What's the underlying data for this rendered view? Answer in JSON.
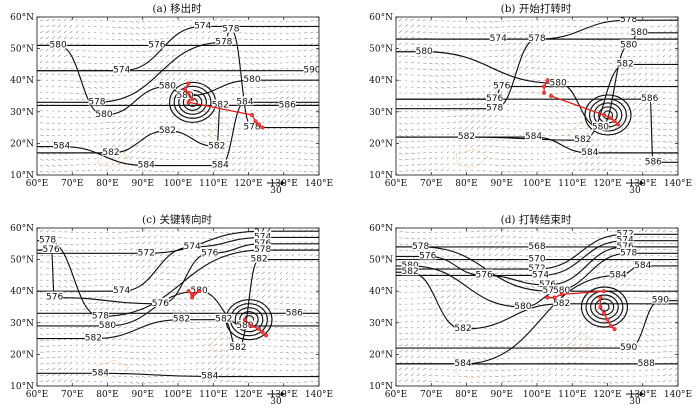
{
  "chart_data": [
    {
      "type": "contour",
      "title": "(a) 移出时",
      "x_ticks": [
        "60°E",
        "70°E",
        "80°E",
        "90°E",
        "100°E",
        "110°E",
        "120°E",
        "130°E",
        "140°E"
      ],
      "y_ticks": [
        "10°N",
        "20°N",
        "30°N",
        "40°N",
        "50°N",
        "60°N"
      ],
      "xlim": [
        60,
        140
      ],
      "ylim": [
        10,
        60
      ],
      "reference_vector": "30",
      "contour_labels": [
        {
          "text": "574",
          "lon": 107,
          "lat": 57
        },
        {
          "text": "578",
          "lon": 115,
          "lat": 56
        },
        {
          "text": "580",
          "lon": 66,
          "lat": 51
        },
        {
          "text": "576",
          "lon": 94,
          "lat": 51
        },
        {
          "text": "578",
          "lon": 113,
          "lat": 52
        },
        {
          "text": "574",
          "lon": 84,
          "lat": 43
        },
        {
          "text": "580",
          "lon": 97,
          "lat": 38
        },
        {
          "text": "580",
          "lon": 102,
          "lat": 35
        },
        {
          "text": "580",
          "lon": 121,
          "lat": 40
        },
        {
          "text": "578",
          "lon": 77,
          "lat": 33
        },
        {
          "text": "580",
          "lon": 79,
          "lat": 29
        },
        {
          "text": "582",
          "lon": 112,
          "lat": 32
        },
        {
          "text": "584",
          "lon": 119,
          "lat": 33
        },
        {
          "text": "586",
          "lon": 131,
          "lat": 32
        },
        {
          "text": "582",
          "lon": 97,
          "lat": 24
        },
        {
          "text": "578",
          "lon": 121,
          "lat": 25
        },
        {
          "text": "584",
          "lon": 67,
          "lat": 19
        },
        {
          "text": "582",
          "lon": 81,
          "lat": 17
        },
        {
          "text": "584",
          "lon": 91,
          "lat": 13
        },
        {
          "text": "582",
          "lon": 111,
          "lat": 19
        },
        {
          "text": "584",
          "lon": 112,
          "lat": 13
        },
        {
          "text": "590",
          "lon": 138,
          "lat": 43
        }
      ],
      "track": [
        [
          103,
          39
        ],
        [
          102,
          37
        ],
        [
          103,
          36
        ],
        [
          104,
          34
        ],
        [
          103,
          33
        ],
        [
          121,
          29
        ],
        [
          122,
          27
        ],
        [
          123,
          26
        ],
        [
          124,
          25
        ]
      ]
    },
    {
      "type": "contour",
      "title": "(b) 开始打转时",
      "x_ticks": [
        "60°E",
        "70°E",
        "80°E",
        "90°E",
        "100°E",
        "110°E",
        "120°E",
        "130°E",
        "140°E"
      ],
      "y_ticks": [
        "10°N",
        "20°N",
        "30°N",
        "40°N",
        "50°N",
        "60°N"
      ],
      "xlim": [
        60,
        140
      ],
      "ylim": [
        10,
        60
      ],
      "reference_vector": "30",
      "contour_labels": [
        {
          "text": "578",
          "lon": 126,
          "lat": 59
        },
        {
          "text": "580",
          "lon": 129,
          "lat": 55
        },
        {
          "text": "574",
          "lon": 89,
          "lat": 53
        },
        {
          "text": "578",
          "lon": 100,
          "lat": 53
        },
        {
          "text": "580",
          "lon": 126,
          "lat": 51
        },
        {
          "text": "580",
          "lon": 68,
          "lat": 49
        },
        {
          "text": "582",
          "lon": 125,
          "lat": 45
        },
        {
          "text": "576",
          "lon": 90,
          "lat": 38
        },
        {
          "text": "580",
          "lon": 106,
          "lat": 39
        },
        {
          "text": "576",
          "lon": 88,
          "lat": 34
        },
        {
          "text": "578",
          "lon": 88,
          "lat": 31
        },
        {
          "text": "586",
          "lon": 132,
          "lat": 34
        },
        {
          "text": "580",
          "lon": 118,
          "lat": 25
        },
        {
          "text": "582",
          "lon": 80,
          "lat": 22
        },
        {
          "text": "584",
          "lon": 99,
          "lat": 22
        },
        {
          "text": "582",
          "lon": 113,
          "lat": 21
        },
        {
          "text": "584",
          "lon": 115,
          "lat": 17
        },
        {
          "text": "586",
          "lon": 133,
          "lat": 14
        }
      ],
      "track": [
        [
          103,
          40
        ],
        [
          102,
          38
        ],
        [
          102,
          36
        ],
        [
          104,
          35
        ],
        [
          119,
          29
        ],
        [
          121,
          28
        ],
        [
          122,
          27
        ],
        [
          123,
          26
        ]
      ]
    },
    {
      "type": "contour",
      "title": "(c) 关键转向时",
      "x_ticks": [
        "60°E",
        "70°E",
        "80°E",
        "90°E",
        "100°E",
        "110°E",
        "120°E",
        "130°E",
        "140°E"
      ],
      "y_ticks": [
        "10°N",
        "20°N",
        "30°N",
        "40°N",
        "50°N",
        "60°N"
      ],
      "xlim": [
        60,
        140
      ],
      "ylim": [
        10,
        60
      ],
      "reference_vector": "30",
      "contour_labels": [
        {
          "text": "572",
          "lon": 124,
          "lat": 59
        },
        {
          "text": "574",
          "lon": 124,
          "lat": 57
        },
        {
          "text": "576",
          "lon": 124,
          "lat": 55
        },
        {
          "text": "578",
          "lon": 124,
          "lat": 53
        },
        {
          "text": "578",
          "lon": 63,
          "lat": 56
        },
        {
          "text": "576",
          "lon": 64,
          "lat": 53
        },
        {
          "text": "572",
          "lon": 91,
          "lat": 52
        },
        {
          "text": "574",
          "lon": 104,
          "lat": 54
        },
        {
          "text": "576",
          "lon": 109,
          "lat": 52
        },
        {
          "text": "582",
          "lon": 123,
          "lat": 50
        },
        {
          "text": "576",
          "lon": 65,
          "lat": 38
        },
        {
          "text": "574",
          "lon": 84,
          "lat": 40
        },
        {
          "text": "576",
          "lon": 95,
          "lat": 36
        },
        {
          "text": "580",
          "lon": 106,
          "lat": 40
        },
        {
          "text": "578",
          "lon": 78,
          "lat": 32
        },
        {
          "text": "580",
          "lon": 80,
          "lat": 29
        },
        {
          "text": "582",
          "lon": 101,
          "lat": 31
        },
        {
          "text": "582",
          "lon": 113,
          "lat": 31
        },
        {
          "text": "586",
          "lon": 133,
          "lat": 33
        },
        {
          "text": "582",
          "lon": 76,
          "lat": 25
        },
        {
          "text": "580",
          "lon": 119,
          "lat": 29
        },
        {
          "text": "582",
          "lon": 117,
          "lat": 22
        },
        {
          "text": "584",
          "lon": 78,
          "lat": 14
        },
        {
          "text": "584",
          "lon": 109,
          "lat": 13
        }
      ],
      "track": [
        [
          103,
          40
        ],
        [
          104,
          39
        ],
        [
          106,
          40
        ],
        [
          104,
          38
        ],
        [
          119,
          31
        ],
        [
          121,
          29
        ],
        [
          123,
          28
        ],
        [
          124,
          27
        ],
        [
          125,
          26
        ]
      ]
    },
    {
      "type": "contour",
      "title": "(d) 打转结束时",
      "x_ticks": [
        "60°E",
        "70°E",
        "80°E",
        "90°E",
        "100°E",
        "110°E",
        "120°E",
        "130°E",
        "140°E"
      ],
      "y_ticks": [
        "10°N",
        "20°N",
        "30°N",
        "40°N",
        "50°N",
        "60°N"
      ],
      "xlim": [
        60,
        140
      ],
      "ylim": [
        10,
        60
      ],
      "reference_vector": "30",
      "contour_labels": [
        {
          "text": "572",
          "lon": 125,
          "lat": 58
        },
        {
          "text": "574",
          "lon": 125,
          "lat": 56
        },
        {
          "text": "576",
          "lon": 125,
          "lat": 54
        },
        {
          "text": "578",
          "lon": 126,
          "lat": 52
        },
        {
          "text": "578",
          "lon": 67,
          "lat": 54
        },
        {
          "text": "576",
          "lon": 69,
          "lat": 51
        },
        {
          "text": "580",
          "lon": 64,
          "lat": 48
        },
        {
          "text": "582",
          "lon": 64,
          "lat": 46
        },
        {
          "text": "568",
          "lon": 100,
          "lat": 54
        },
        {
          "text": "570",
          "lon": 100,
          "lat": 50
        },
        {
          "text": "572",
          "lon": 100,
          "lat": 47
        },
        {
          "text": "574",
          "lon": 101,
          "lat": 45
        },
        {
          "text": "576",
          "lon": 85,
          "lat": 45
        },
        {
          "text": "576",
          "lon": 103,
          "lat": 42
        },
        {
          "text": "578",
          "lon": 104,
          "lat": 40
        },
        {
          "text": "580",
          "lon": 107,
          "lat": 40
        },
        {
          "text": "584",
          "lon": 123,
          "lat": 45
        },
        {
          "text": "584",
          "lon": 130,
          "lat": 48
        },
        {
          "text": "580",
          "lon": 96,
          "lat": 35
        },
        {
          "text": "582",
          "lon": 107,
          "lat": 36
        },
        {
          "text": "590",
          "lon": 135,
          "lat": 37
        },
        {
          "text": "582",
          "lon": 79,
          "lat": 28
        },
        {
          "text": "584",
          "lon": 79,
          "lat": 17
        },
        {
          "text": "590",
          "lon": 126,
          "lat": 22
        },
        {
          "text": "588",
          "lon": 131,
          "lat": 17
        }
      ],
      "track": [
        [
          103,
          38
        ],
        [
          105,
          38
        ],
        [
          107,
          39
        ],
        [
          119,
          40
        ],
        [
          118,
          38
        ],
        [
          118,
          35
        ],
        [
          119,
          33
        ],
        [
          120,
          31
        ],
        [
          121,
          29
        ],
        [
          122,
          28
        ]
      ]
    }
  ]
}
